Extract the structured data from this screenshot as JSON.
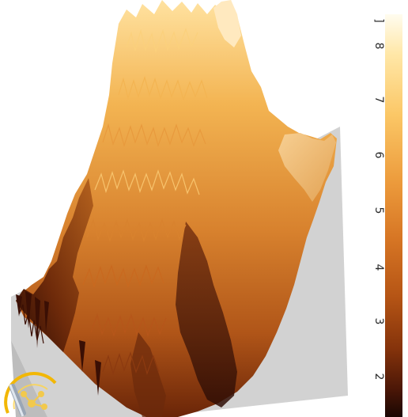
{
  "colorbar": {
    "ticks": [
      "8",
      "7",
      "6",
      "5",
      "4",
      "3",
      "2"
    ],
    "top_label_fragment": "]",
    "colors": [
      "#fffcef",
      "#ffe7a7",
      "#fbc766",
      "#ec9a3b",
      "#d67524",
      "#b65515",
      "#85330b",
      "#4c1707",
      "#1a0703"
    ]
  },
  "logo": {
    "icon": "molecule-magnifier-logo-icon",
    "ring_color": "#f2b705"
  },
  "surface": {
    "base_color": "#d2d2d2",
    "high_color": "#f6c162",
    "low_color": "#3a0f04"
  }
}
